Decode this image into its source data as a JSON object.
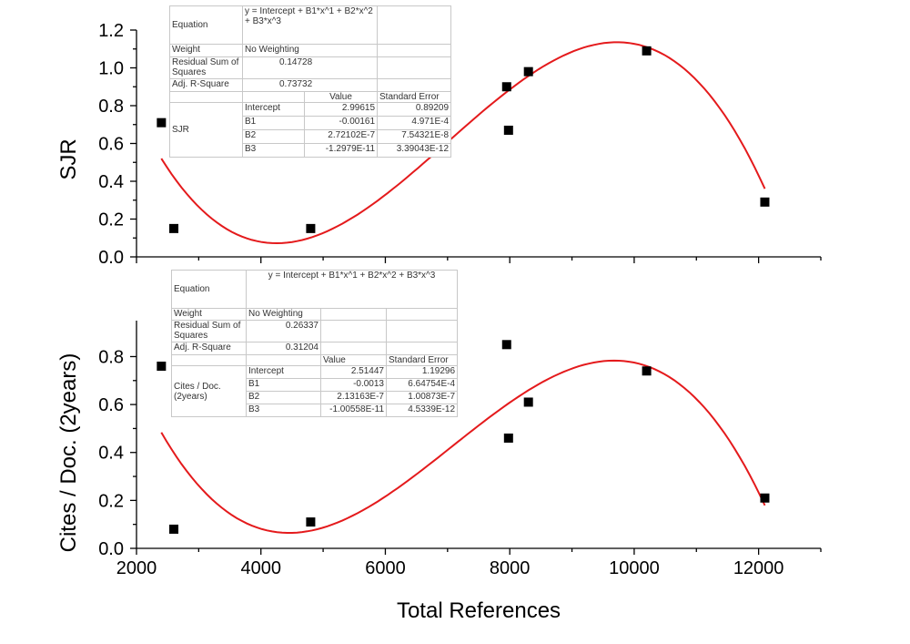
{
  "chart_data": [
    {
      "type": "scatter",
      "panel": "top",
      "title": "",
      "xlabel": "",
      "ylabel": "SJR",
      "xlim": [
        2000,
        13000
      ],
      "ylim": [
        0,
        1.2
      ],
      "x_ticks": [
        "2000",
        "4000",
        "6000",
        "8000",
        "10000",
        "12000"
      ],
      "y_ticks": [
        "0.0",
        "0.2",
        "0.4",
        "0.6",
        "0.8",
        "1.0",
        "1.2"
      ],
      "series": [
        {
          "name": "SJR",
          "x": [
            2400,
            2600,
            4800,
            7950,
            7980,
            8300,
            10200,
            12100
          ],
          "y": [
            0.71,
            0.15,
            0.15,
            0.9,
            0.67,
            0.98,
            1.09,
            0.29
          ]
        }
      ],
      "fit": {
        "intercept": 2.99615,
        "b1": -0.00161,
        "b2": 2.72102e-07,
        "b3": -1.2979e-11,
        "x_range": [
          2400,
          12100
        ]
      },
      "stats_table": {
        "equation_label": "Equation",
        "equation": "y = Intercept + B1*x^1 + B2*x^2 + B3*x^3",
        "weight_label": "Weight",
        "weight": "No Weighting",
        "rss_label": "Residual Sum of Squares",
        "rss": "0.14728",
        "r2_label": "Adj. R-Square",
        "r2": "0.73732",
        "value_header": "Value",
        "se_header": "Standard Error",
        "variable": "SJR",
        "params": [
          {
            "name": "Intercept",
            "value": "2.99615",
            "se": "0.89209"
          },
          {
            "name": "B1",
            "value": "-0.00161",
            "se": "4.971E-4"
          },
          {
            "name": "B2",
            "value": "2.72102E-7",
            "se": "7.54321E-8"
          },
          {
            "name": "B3",
            "value": "-1.2979E-11",
            "se": "3.39043E-12"
          }
        ]
      }
    },
    {
      "type": "scatter",
      "panel": "bottom",
      "title": "",
      "xlabel": "Total References",
      "ylabel": "Cites / Doc. (2years)",
      "xlim": [
        2000,
        13000
      ],
      "ylim": [
        0,
        0.95
      ],
      "x_ticks": [
        "2000",
        "4000",
        "6000",
        "8000",
        "10000",
        "12000"
      ],
      "y_ticks": [
        "0.0",
        "0.2",
        "0.4",
        "0.6",
        "0.8"
      ],
      "series": [
        {
          "name": "Cites / Doc. (2years)",
          "x": [
            2400,
            2600,
            4800,
            7950,
            7980,
            8300,
            10200,
            12100
          ],
          "y": [
            0.76,
            0.08,
            0.11,
            0.85,
            0.46,
            0.61,
            0.74,
            0.21
          ]
        }
      ],
      "fit": {
        "intercept": 2.51447,
        "b1": -0.0013,
        "b2": 2.13163e-07,
        "b3": -1.00558e-11,
        "x_range": [
          2400,
          12100
        ]
      },
      "stats_table": {
        "equation_label": "Equation",
        "equation": "y = Intercept + B1*x^1 + B2*x^2 + B3*x^3",
        "weight_label": "Weight",
        "weight": "No Weighting",
        "rss_label": "Residual Sum of Squares",
        "rss": "0.26337",
        "r2_label": "Adj. R-Square",
        "r2": "0.31204",
        "value_header": "Value",
        "se_header": "Standard Error",
        "variable": "Cites / Doc. (2years)",
        "params": [
          {
            "name": "Intercept",
            "value": "2.51447",
            "se": "1.19296"
          },
          {
            "name": "B1",
            "value": "-0.0013",
            "se": "6.64754E-4"
          },
          {
            "name": "B2",
            "value": "2.13163E-7",
            "se": "1.00873E-7"
          },
          {
            "name": "B3",
            "value": "-1.00558E-11",
            "se": "4.5339E-12"
          }
        ]
      }
    }
  ]
}
